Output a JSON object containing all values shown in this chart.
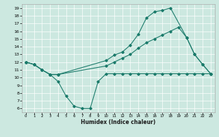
{
  "xlabel": "Humidex (Indice chaleur)",
  "bg_color": "#cce8e0",
  "line_color": "#1a7a6a",
  "xlim": [
    -0.5,
    23.5
  ],
  "ylim": [
    5.5,
    19.5
  ],
  "xticks": [
    0,
    1,
    2,
    3,
    4,
    5,
    6,
    7,
    8,
    9,
    10,
    11,
    12,
    13,
    14,
    15,
    16,
    17,
    18,
    19,
    20,
    21,
    22,
    23
  ],
  "yticks": [
    6,
    7,
    8,
    9,
    10,
    11,
    12,
    13,
    14,
    15,
    16,
    17,
    18,
    19
  ],
  "line1_x": [
    0,
    1,
    2,
    3,
    4,
    5,
    6,
    7,
    8,
    9,
    10,
    11,
    12,
    13,
    14,
    15,
    16,
    17,
    18,
    19,
    20,
    21,
    22,
    23
  ],
  "line1_y": [
    12.0,
    11.7,
    11.0,
    10.4,
    9.5,
    7.6,
    6.3,
    6.0,
    6.0,
    9.5,
    10.5,
    10.5,
    10.5,
    10.5,
    10.5,
    10.5,
    10.5,
    10.5,
    10.5,
    10.5,
    10.5,
    10.5,
    10.5,
    10.5
  ],
  "line2_x": [
    0,
    1,
    2,
    3,
    4,
    10,
    11,
    12,
    13,
    14,
    15,
    16,
    17,
    18,
    19,
    20,
    21,
    22,
    23
  ],
  "line2_y": [
    12.0,
    11.7,
    11.0,
    10.4,
    10.4,
    11.5,
    12.0,
    12.5,
    13.0,
    13.8,
    14.5,
    15.0,
    15.5,
    16.0,
    16.5,
    15.2,
    13.0,
    11.7,
    10.5
  ],
  "line3_x": [
    0,
    1,
    2,
    3,
    4,
    10,
    11,
    12,
    13,
    14,
    15,
    16,
    17,
    18,
    20,
    21,
    22,
    23
  ],
  "line3_y": [
    12.0,
    11.7,
    11.0,
    10.4,
    10.4,
    12.2,
    12.9,
    13.3,
    14.2,
    15.6,
    17.7,
    18.5,
    18.7,
    19.0,
    15.2,
    13.0,
    11.7,
    10.5
  ]
}
